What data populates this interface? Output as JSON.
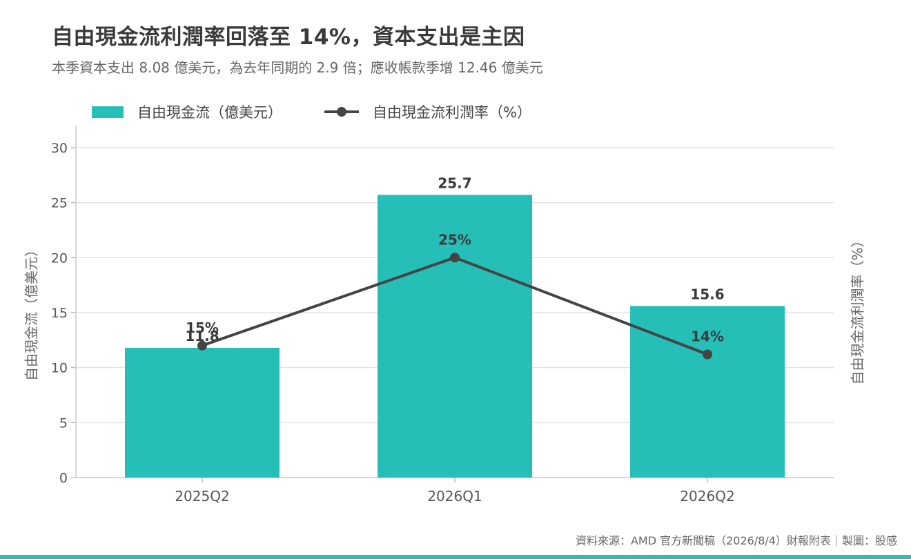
{
  "title": "自由現金流利潤率回落至 14%，資本支出是主因",
  "subtitle": "本季資本支出 8.08 億美元，為去年同期的 2.9 倍；應收帳款季增 12.46 億美元",
  "source": "資料來源：AMD 官方新聞稿（2026/8/4）財報附表｜製圖：股感",
  "colors": {
    "bar": "#26BFB7",
    "line": "#444444",
    "accent_strip": "#26BFB7"
  },
  "chart_data": {
    "type": "bar+line",
    "categories": [
      "2025Q2",
      "2026Q1",
      "2026Q2"
    ],
    "series": [
      {
        "name": "自由現金流（億美元）",
        "type": "bar",
        "axis": "left",
        "values": [
          11.8,
          25.7,
          15.6
        ],
        "labels": [
          "11.8",
          "25.7",
          "15.6"
        ]
      },
      {
        "name": "自由現金流利潤率（%）",
        "type": "line",
        "axis": "right",
        "values": [
          15,
          25,
          14
        ],
        "labels": [
          "15%",
          "25%",
          "14%"
        ]
      }
    ],
    "ylabel": "自由現金流（億美元）",
    "ylabel_right": "自由現金流利潤率（%）",
    "ylim": [
      0,
      32
    ],
    "yticks": [
      0,
      5,
      10,
      15,
      20,
      25,
      30
    ],
    "grid": true,
    "legend": "top-left"
  }
}
